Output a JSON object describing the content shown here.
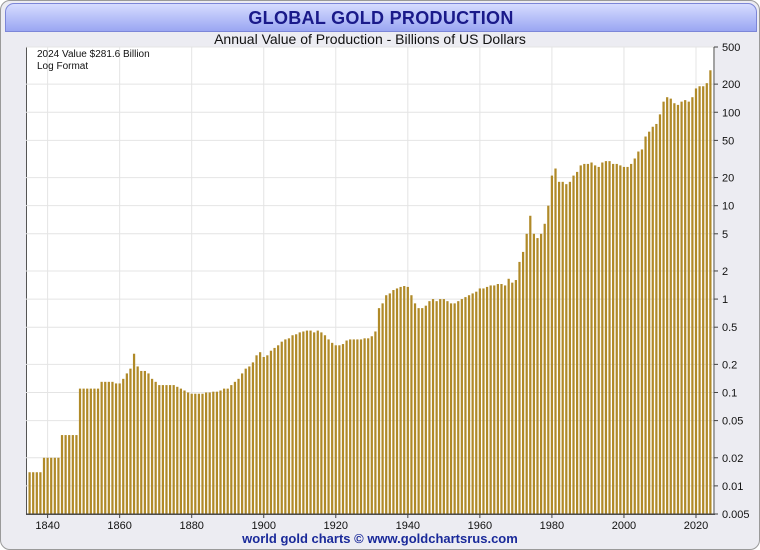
{
  "header": {
    "title": "GLOBAL GOLD PRODUCTION"
  },
  "chart_data": {
    "type": "bar",
    "title": "Annual Value of Production - Billions of US Dollars",
    "annotation_line1": "2024  Value  $281.6 Billion",
    "annotation_line2": "Log Format",
    "yscale": "log",
    "ylim": [
      0.005,
      500
    ],
    "xlim": [
      1834,
      2025
    ],
    "yticks": [
      500,
      200,
      100,
      50,
      20,
      10,
      5,
      2,
      1,
      0.5,
      0.2,
      0.1,
      0.05,
      0.02,
      0.01,
      0.005
    ],
    "xticks": [
      1840,
      1860,
      1880,
      1900,
      1920,
      1940,
      1960,
      1980,
      2000,
      2020
    ],
    "grid": true,
    "bar_color": "#b08a28",
    "points": [
      [
        1835,
        0.014
      ],
      [
        1836,
        0.014
      ],
      [
        1837,
        0.014
      ],
      [
        1838,
        0.014
      ],
      [
        1839,
        0.02
      ],
      [
        1840,
        0.02
      ],
      [
        1841,
        0.02
      ],
      [
        1842,
        0.02
      ],
      [
        1843,
        0.02
      ],
      [
        1844,
        0.035
      ],
      [
        1845,
        0.035
      ],
      [
        1846,
        0.035
      ],
      [
        1847,
        0.035
      ],
      [
        1848,
        0.035
      ],
      [
        1849,
        0.11
      ],
      [
        1850,
        0.11
      ],
      [
        1851,
        0.11
      ],
      [
        1852,
        0.11
      ],
      [
        1853,
        0.11
      ],
      [
        1854,
        0.11
      ],
      [
        1855,
        0.13
      ],
      [
        1856,
        0.13
      ],
      [
        1857,
        0.13
      ],
      [
        1858,
        0.13
      ],
      [
        1859,
        0.125
      ],
      [
        1860,
        0.125
      ],
      [
        1861,
        0.14
      ],
      [
        1862,
        0.16
      ],
      [
        1863,
        0.18
      ],
      [
        1864,
        0.26
      ],
      [
        1865,
        0.19
      ],
      [
        1866,
        0.17
      ],
      [
        1867,
        0.17
      ],
      [
        1868,
        0.16
      ],
      [
        1869,
        0.14
      ],
      [
        1870,
        0.13
      ],
      [
        1871,
        0.12
      ],
      [
        1872,
        0.12
      ],
      [
        1873,
        0.12
      ],
      [
        1874,
        0.12
      ],
      [
        1875,
        0.12
      ],
      [
        1876,
        0.115
      ],
      [
        1877,
        0.11
      ],
      [
        1878,
        0.105
      ],
      [
        1879,
        0.1
      ],
      [
        1880,
        0.097
      ],
      [
        1881,
        0.097
      ],
      [
        1882,
        0.097
      ],
      [
        1883,
        0.097
      ],
      [
        1884,
        0.1
      ],
      [
        1885,
        0.1
      ],
      [
        1886,
        0.102
      ],
      [
        1887,
        0.102
      ],
      [
        1888,
        0.105
      ],
      [
        1889,
        0.11
      ],
      [
        1890,
        0.11
      ],
      [
        1891,
        0.12
      ],
      [
        1892,
        0.13
      ],
      [
        1893,
        0.14
      ],
      [
        1894,
        0.16
      ],
      [
        1895,
        0.18
      ],
      [
        1896,
        0.19
      ],
      [
        1897,
        0.21
      ],
      [
        1898,
        0.25
      ],
      [
        1899,
        0.27
      ],
      [
        1900,
        0.24
      ],
      [
        1901,
        0.25
      ],
      [
        1902,
        0.28
      ],
      [
        1903,
        0.3
      ],
      [
        1904,
        0.32
      ],
      [
        1905,
        0.35
      ],
      [
        1906,
        0.37
      ],
      [
        1907,
        0.38
      ],
      [
        1908,
        0.41
      ],
      [
        1909,
        0.42
      ],
      [
        1910,
        0.44
      ],
      [
        1911,
        0.45
      ],
      [
        1912,
        0.46
      ],
      [
        1913,
        0.46
      ],
      [
        1914,
        0.44
      ],
      [
        1915,
        0.46
      ],
      [
        1916,
        0.44
      ],
      [
        1917,
        0.41
      ],
      [
        1918,
        0.37
      ],
      [
        1919,
        0.34
      ],
      [
        1920,
        0.32
      ],
      [
        1921,
        0.32
      ],
      [
        1922,
        0.33
      ],
      [
        1923,
        0.36
      ],
      [
        1924,
        0.37
      ],
      [
        1925,
        0.37
      ],
      [
        1926,
        0.37
      ],
      [
        1927,
        0.37
      ],
      [
        1928,
        0.38
      ],
      [
        1929,
        0.38
      ],
      [
        1930,
        0.4
      ],
      [
        1931,
        0.45
      ],
      [
        1932,
        0.8
      ],
      [
        1933,
        0.9
      ],
      [
        1934,
        1.1
      ],
      [
        1935,
        1.15
      ],
      [
        1936,
        1.25
      ],
      [
        1937,
        1.3
      ],
      [
        1938,
        1.35
      ],
      [
        1939,
        1.38
      ],
      [
        1940,
        1.35
      ],
      [
        1941,
        1.1
      ],
      [
        1942,
        0.9
      ],
      [
        1943,
        0.8
      ],
      [
        1944,
        0.8
      ],
      [
        1945,
        0.85
      ],
      [
        1946,
        0.95
      ],
      [
        1947,
        1.0
      ],
      [
        1948,
        0.95
      ],
      [
        1949,
        1.0
      ],
      [
        1950,
        1.0
      ],
      [
        1951,
        0.95
      ],
      [
        1952,
        0.9
      ],
      [
        1953,
        0.9
      ],
      [
        1954,
        0.95
      ],
      [
        1955,
        1.0
      ],
      [
        1956,
        1.05
      ],
      [
        1957,
        1.1
      ],
      [
        1958,
        1.15
      ],
      [
        1959,
        1.2
      ],
      [
        1960,
        1.3
      ],
      [
        1961,
        1.3
      ],
      [
        1962,
        1.35
      ],
      [
        1963,
        1.4
      ],
      [
        1964,
        1.4
      ],
      [
        1965,
        1.45
      ],
      [
        1966,
        1.45
      ],
      [
        1967,
        1.4
      ],
      [
        1968,
        1.65
      ],
      [
        1969,
        1.5
      ],
      [
        1970,
        1.6
      ],
      [
        1971,
        2.5
      ],
      [
        1972,
        3.2
      ],
      [
        1973,
        5
      ],
      [
        1974,
        7.8
      ],
      [
        1975,
        5
      ],
      [
        1976,
        4.5
      ],
      [
        1977,
        5
      ],
      [
        1978,
        6.4
      ],
      [
        1979,
        10
      ],
      [
        1980,
        21
      ],
      [
        1981,
        25
      ],
      [
        1982,
        18
      ],
      [
        1983,
        18
      ],
      [
        1984,
        17
      ],
      [
        1985,
        18
      ],
      [
        1986,
        21
      ],
      [
        1987,
        23
      ],
      [
        1988,
        27
      ],
      [
        1989,
        28
      ],
      [
        1990,
        28
      ],
      [
        1991,
        29
      ],
      [
        1992,
        27
      ],
      [
        1993,
        26
      ],
      [
        1994,
        29
      ],
      [
        1995,
        30
      ],
      [
        1996,
        30
      ],
      [
        1997,
        28
      ],
      [
        1998,
        28
      ],
      [
        1999,
        27
      ],
      [
        2000,
        26
      ],
      [
        2001,
        26
      ],
      [
        2002,
        28
      ],
      [
        2003,
        32
      ],
      [
        2004,
        38
      ],
      [
        2005,
        40
      ],
      [
        2006,
        55
      ],
      [
        2007,
        62
      ],
      [
        2008,
        70
      ],
      [
        2009,
        75
      ],
      [
        2010,
        95
      ],
      [
        2011,
        130
      ],
      [
        2012,
        145
      ],
      [
        2013,
        140
      ],
      [
        2014,
        125
      ],
      [
        2015,
        120
      ],
      [
        2016,
        130
      ],
      [
        2017,
        135
      ],
      [
        2018,
        130
      ],
      [
        2019,
        145
      ],
      [
        2020,
        180
      ],
      [
        2021,
        190
      ],
      [
        2022,
        190
      ],
      [
        2023,
        205
      ],
      [
        2024,
        281.6
      ]
    ]
  },
  "footer": {
    "credit": "world gold charts © www.goldchartsrus.com"
  }
}
